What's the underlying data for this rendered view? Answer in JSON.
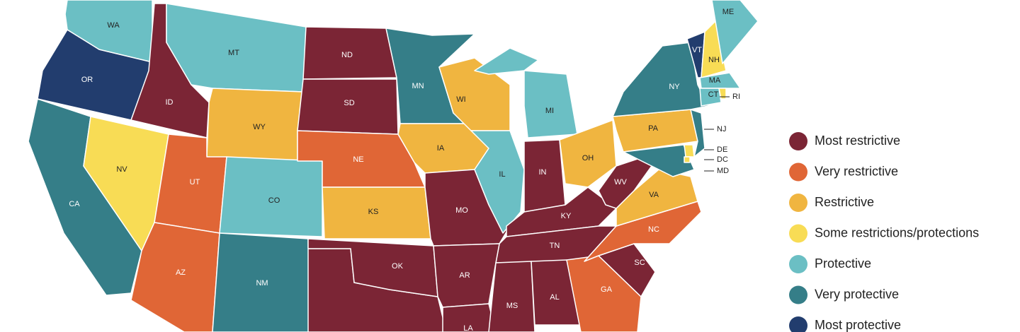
{
  "map": {
    "legend": [
      {
        "label": "Most restrictive",
        "color": "#7b2535",
        "states": [
          "ID",
          "ND",
          "SD",
          "MO",
          "OK",
          "AR",
          "LA",
          "MS",
          "AL",
          "TN",
          "KY",
          "IN",
          "WV",
          "SC"
        ]
      },
      {
        "label": "Very restrictive",
        "color": "#e06636",
        "states": [
          "UT",
          "AZ",
          "NE",
          "GA",
          "NC"
        ]
      },
      {
        "label": "Restrictive",
        "color": "#f0b540",
        "states": [
          "WY",
          "KS",
          "IA",
          "WI",
          "OH",
          "PA",
          "VA"
        ]
      },
      {
        "label": "Some restrictions/protections",
        "color": "#f8dc55",
        "states": [
          "NV",
          "NH",
          "RI",
          "DE",
          "DC"
        ]
      },
      {
        "label": "Protective",
        "color": "#6bbfc4",
        "states": [
          "WA",
          "MT",
          "CO",
          "IL",
          "MI",
          "ME",
          "MA",
          "CT"
        ]
      },
      {
        "label": "Very protective",
        "color": "#357e88",
        "states": [
          "CA",
          "MN",
          "NY",
          "NM",
          "NJ",
          "MD"
        ]
      },
      {
        "label": "Most protective",
        "color": "#223d6e",
        "states": [
          "OR",
          "VT"
        ]
      }
    ]
  }
}
